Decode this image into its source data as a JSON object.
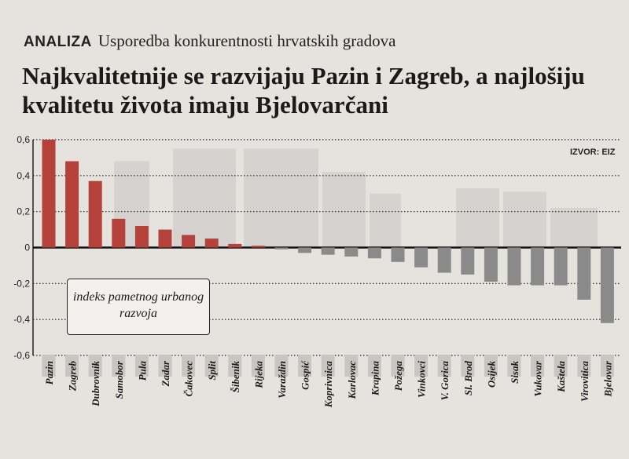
{
  "header": {
    "kicker": "ANALIZA",
    "subtitle": "Usporedba konkurentnosti hrvatskih gradova",
    "headline": "Najkvalitetnije se razvijaju Pazin i Zagreb, a najlošiju kvalitetu života imaju Bjelovarčani"
  },
  "source": "IZVOR: EIZ",
  "callout": "indeks pametnog urbanog razvoja",
  "colors": {
    "positive": "#b5423a",
    "negative": "#8a8a8a",
    "grid": "#222222",
    "backdrop": "#c9c7c4"
  },
  "chart_data": {
    "type": "bar",
    "title": "Najkvalitetnije se razvijaju Pazin i Zagreb, a najlošiju kvalitetu života imaju Bjelovarčani",
    "ylabel": "indeks pametnog urbanog razvoja",
    "ylim": [
      -0.6,
      0.6
    ],
    "yticks": [
      "0,6",
      "0,4",
      "0,2",
      "0",
      "-0,2",
      "-0,4",
      "-0,6"
    ],
    "ytick_values": [
      0.6,
      0.4,
      0.2,
      0,
      -0.2,
      -0.4,
      -0.6
    ],
    "grid": true,
    "categories": [
      "Pazin",
      "Zagreb",
      "Dubrovnik",
      "Samobor",
      "Pula",
      "Zadar",
      "Čakovec",
      "Split",
      "Šibenik",
      "Rijeka",
      "Varaždin",
      "Gospić",
      "Koprivnica",
      "Karlovac",
      "Krapina",
      "Požega",
      "Vinkovci",
      "V. Gorica",
      "Sl. Brod",
      "Osijek",
      "Sisak",
      "Vukovar",
      "Kaštela",
      "Virovitica",
      "Bjelovar"
    ],
    "values": [
      0.6,
      0.48,
      0.37,
      0.16,
      0.12,
      0.1,
      0.07,
      0.05,
      0.02,
      0.01,
      -0.01,
      -0.03,
      -0.04,
      -0.05,
      -0.06,
      -0.08,
      -0.11,
      -0.14,
      -0.15,
      -0.19,
      -0.21,
      -0.21,
      -0.21,
      -0.29,
      -0.42
    ]
  }
}
